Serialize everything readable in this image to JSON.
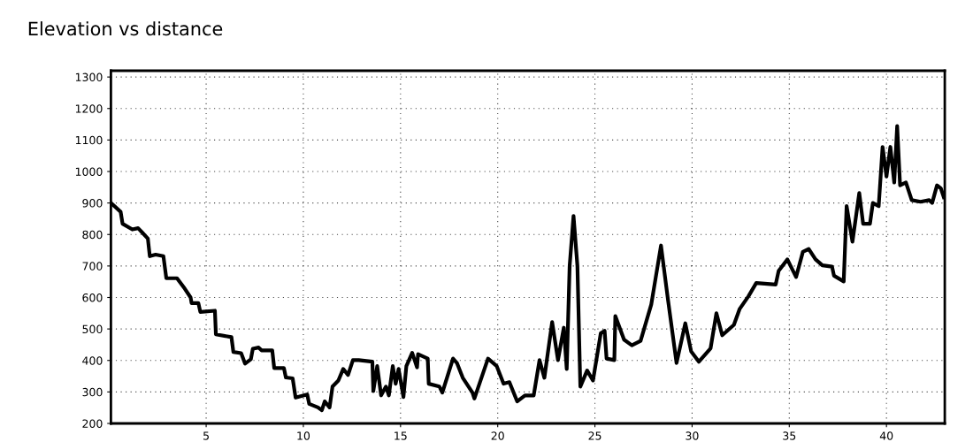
{
  "chart_data": {
    "type": "line",
    "title": "Elevation vs distance",
    "xlim": [
      0.1,
      43
    ],
    "ylim": [
      200,
      1320
    ],
    "xticks": [
      5,
      10,
      15,
      20,
      25,
      30,
      35,
      40
    ],
    "yticks": [
      200,
      300,
      400,
      500,
      600,
      700,
      800,
      900,
      1000,
      1100,
      1200,
      1300
    ],
    "grid": true,
    "line_style": "solid",
    "marker": "none",
    "series": [
      {
        "color": "#000000",
        "x": [
          0.1,
          0.6,
          0.7,
          1.2,
          1.5,
          1.7,
          2.0,
          2.1,
          2.4,
          2.8,
          2.95,
          3.5,
          3.9,
          4.2,
          4.25,
          4.6,
          4.7,
          5.45,
          5.5,
          6.3,
          6.4,
          6.8,
          7.0,
          7.3,
          7.4,
          7.7,
          7.85,
          8.4,
          8.5,
          9.0,
          9.1,
          9.45,
          9.6,
          10.2,
          10.3,
          10.75,
          10.95,
          11.1,
          11.35,
          11.5,
          11.8,
          12.05,
          12.3,
          12.55,
          12.85,
          13.55,
          13.6,
          13.8,
          14.0,
          14.25,
          14.4,
          14.6,
          14.75,
          14.9,
          15.15,
          15.3,
          15.6,
          15.85,
          15.9,
          16.4,
          16.45,
          17.0,
          17.15,
          17.7,
          17.9,
          18.2,
          18.7,
          18.8,
          19.5,
          19.95,
          20.3,
          20.6,
          21.0,
          21.4,
          21.85,
          22.15,
          22.4,
          22.8,
          23.1,
          23.4,
          23.55,
          23.7,
          23.9,
          24.1,
          24.25,
          24.6,
          24.9,
          25.3,
          25.5,
          25.6,
          26.0,
          26.05,
          26.5,
          26.9,
          27.35,
          27.9,
          28.4,
          28.75,
          29.2,
          29.65,
          29.95,
          30.35,
          30.95,
          31.25,
          31.55,
          32.15,
          32.45,
          32.9,
          33.3,
          34.3,
          34.45,
          34.9,
          35.35,
          35.7,
          36.0,
          36.35,
          36.7,
          37.2,
          37.3,
          37.8,
          37.95,
          38.25,
          38.4,
          38.6,
          38.8,
          39.15,
          39.3,
          39.6,
          39.8,
          40.0,
          40.2,
          40.4,
          40.55,
          40.7,
          41.0,
          41.3,
          41.75,
          42.2,
          42.35,
          42.6,
          42.8,
          42.95
        ],
        "values": [
          900,
          872,
          834,
          816,
          820,
          807,
          787,
          731,
          736,
          731,
          661,
          661,
          628,
          600,
          582,
          582,
          554,
          558,
          483,
          474,
          427,
          423,
          390,
          404,
          437,
          441,
          432,
          432,
          376,
          376,
          346,
          343,
          282,
          292,
          262,
          251,
          242,
          270,
          251,
          317,
          336,
          373,
          354,
          401,
          401,
          396,
          303,
          382,
          289,
          317,
          289,
          382,
          326,
          373,
          284,
          382,
          424,
          378,
          420,
          406,
          326,
          317,
          298,
          406,
          392,
          345,
          298,
          279,
          406,
          382,
          326,
          331,
          270,
          289,
          289,
          401,
          345,
          522,
          401,
          504,
          373,
          700,
          859,
          700,
          317,
          368,
          336,
          486,
          494,
          406,
          401,
          541,
          466,
          448,
          462,
          578,
          765,
          597,
          392,
          518,
          429,
          396,
          438,
          550,
          480,
          513,
          564,
          604,
          646,
          641,
          684,
          721,
          665,
          745,
          754,
          721,
          702,
          698,
          669,
          651,
          890,
          777,
          843,
          932,
          834,
          834,
          900,
          890,
          1078,
          984,
          1078,
          965,
          1144,
          956,
          965,
          909,
          904,
          909,
          900,
          956,
          946,
          918
        ]
      }
    ]
  }
}
